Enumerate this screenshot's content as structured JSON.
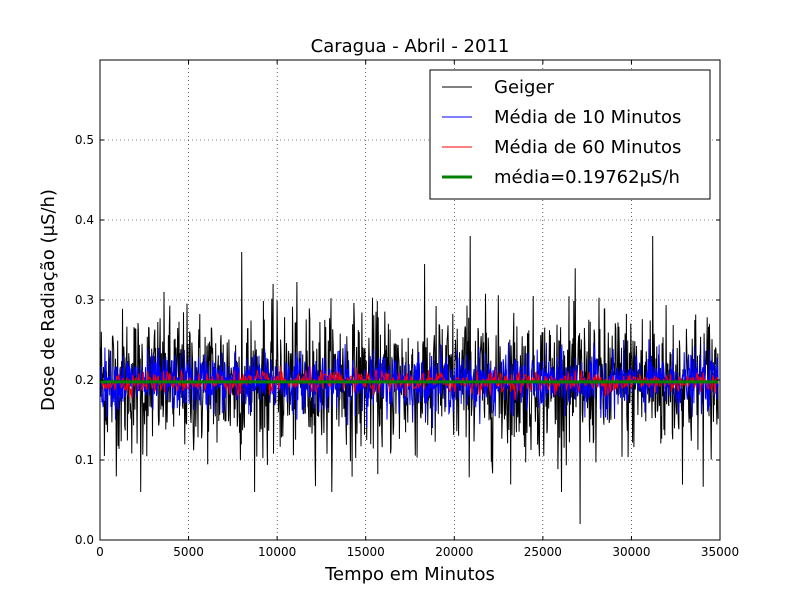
{
  "chart_data": {
    "type": "line",
    "title": "Caragua - Abril - 2011",
    "xlabel": "Tempo em Minutos",
    "ylabel": "Dose de Radiação (μS/h)",
    "xlim": [
      0,
      35000
    ],
    "ylim": [
      0.0,
      0.6
    ],
    "xticks": [
      0,
      5000,
      10000,
      15000,
      20000,
      25000,
      30000,
      35000
    ],
    "xtick_labels": [
      "0",
      "5000",
      "10000",
      "15000",
      "20000",
      "25000",
      "30000",
      "35000"
    ],
    "yticks": [
      0.0,
      0.1,
      0.2,
      0.3,
      0.4,
      0.5
    ],
    "ytick_labels": [
      "0.0",
      "0.1",
      "0.2",
      "0.3",
      "0.4",
      "0.5"
    ],
    "grid": true,
    "legend_position": "top-right",
    "series": [
      {
        "name": "Geiger",
        "color": "#000000",
        "x_range": [
          0,
          34900
        ],
        "typical_range": [
          0.1,
          0.3
        ],
        "min_value": 0.02,
        "max_value": 0.38
      },
      {
        "name": "Média de 10 Minutos",
        "color": "#0000ff",
        "x_range": [
          0,
          34900
        ],
        "typical_range": [
          0.15,
          0.25
        ]
      },
      {
        "name": "Média de 60 Minutos",
        "color": "#ff0000",
        "x_range": [
          0,
          34900
        ],
        "typical_range": [
          0.18,
          0.22
        ]
      },
      {
        "name": "média=0.19762μS/h",
        "color": "#008000",
        "value": 0.19762,
        "x_range": [
          0,
          34900
        ]
      }
    ]
  }
}
